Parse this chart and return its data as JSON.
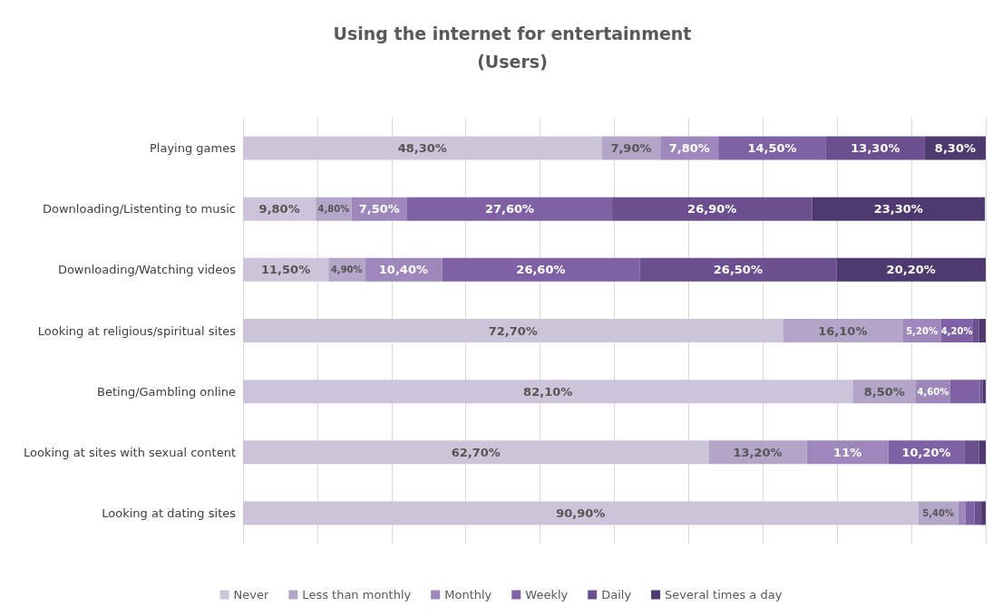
{
  "chart_data": {
    "type": "bar",
    "orientation": "horizontal",
    "stacked": true,
    "title": "Using the internet for entertainment",
    "subtitle": "(Users)",
    "categories": [
      "Playing games",
      "Downloading/Listenting to music",
      "Downloading/Watching videos",
      "Looking at religious/spiritual sites",
      "Beting/Gambling online",
      "Looking at sites with sexual content",
      "Looking at dating sites"
    ],
    "series": [
      {
        "name": "Never",
        "color": "#ccc4d9",
        "values": [
          48.3,
          9.8,
          11.5,
          72.7,
          82.1,
          62.7,
          90.9
        ],
        "value_labels": [
          "48,30%",
          "9,80%",
          "11,50%",
          "72,70%",
          "82,10%",
          "62,70%",
          "90,90%"
        ]
      },
      {
        "name": "Less than monthly",
        "color": "#b3a6c9",
        "values": [
          7.9,
          4.8,
          4.9,
          16.1,
          8.5,
          13.2,
          5.4
        ],
        "value_labels": [
          "7,90%",
          "4,80%",
          "4,90%",
          "16,10%",
          "8,50%",
          "13,20%",
          "5,40%"
        ]
      },
      {
        "name": "Monthly",
        "color": "#9d87bb",
        "values": [
          7.8,
          7.5,
          10.4,
          5.2,
          4.6,
          11,
          1.0
        ],
        "value_labels": [
          "7,80%",
          "7,50%",
          "10,40%",
          "5,20%",
          "4,60%",
          "11%",
          null
        ]
      },
      {
        "name": "Weekly",
        "color": "#7f62a3",
        "values": [
          14.5,
          27.6,
          26.6,
          4.2,
          4.0,
          10.2,
          1.2
        ],
        "value_labels": [
          "14,50%",
          "27,60%",
          "26,60%",
          "4,20%",
          null,
          "10,20%",
          null
        ]
      },
      {
        "name": "Daily",
        "color": "#6b4f8e",
        "values": [
          13.3,
          26.9,
          26.5,
          0.9,
          0.4,
          2.0,
          0.9
        ],
        "value_labels": [
          "13,30%",
          "26,90%",
          "26,50%",
          null,
          null,
          null,
          null
        ]
      },
      {
        "name": "Several times a day",
        "color": "#4e3a6e",
        "values": [
          8.3,
          23.3,
          20.2,
          0.9,
          0.4,
          0.9,
          0.6
        ],
        "value_labels": [
          "8,30%",
          "23,30%",
          "20,20%",
          null,
          null,
          null,
          null
        ]
      }
    ],
    "xlim": [
      0,
      100
    ],
    "xticks": [
      {
        "value": 0,
        "label": null
      },
      {
        "value": 10,
        "label": null
      },
      {
        "value": 20,
        "label": null
      },
      {
        "value": 30,
        "label": null
      },
      {
        "value": 40,
        "label": null
      },
      {
        "value": 50,
        "label": null
      },
      {
        "value": 60,
        "label": null
      },
      {
        "value": 70,
        "label": null
      },
      {
        "value": 80,
        "label": null
      },
      {
        "value": 90,
        "label": null
      },
      {
        "value": 100,
        "label": null
      }
    ],
    "grid": "x",
    "legend": "bottom",
    "tick_labels": "y"
  }
}
